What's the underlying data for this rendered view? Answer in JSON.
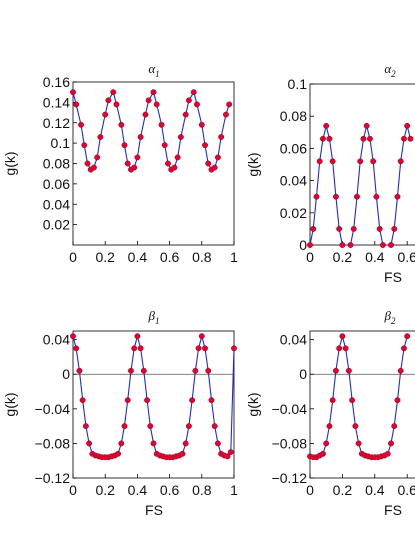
{
  "chart_data": [
    {
      "type": "scatter",
      "title": "α",
      "title_sub": "1",
      "xlabel": "",
      "ylabel": "g(k)",
      "xlim": [
        0,
        1
      ],
      "ylim": [
        0,
        0.16
      ],
      "xticks": [
        "0",
        "0.2",
        "0.4",
        "0.6",
        "0.8",
        "1"
      ],
      "yticks": [
        "0.02",
        "0.04",
        "0.06",
        "0.08",
        "0.1",
        "0.12",
        "0.14",
        "0.16"
      ],
      "series": [
        {
          "points": [
            [
              0,
              0.15
            ],
            [
              0.02,
              0.138
            ],
            [
              0.05,
              0.118
            ],
            [
              0.07,
              0.098
            ],
            [
              0.09,
              0.08
            ],
            [
              0.11,
              0.074
            ],
            [
              0.13,
              0.076
            ],
            [
              0.15,
              0.086
            ],
            [
              0.17,
              0.106
            ],
            [
              0.2,
              0.128
            ],
            [
              0.22,
              0.142
            ],
            [
              0.25,
              0.15
            ],
            [
              0.27,
              0.138
            ],
            [
              0.3,
              0.118
            ],
            [
              0.32,
              0.098
            ],
            [
              0.34,
              0.08
            ],
            [
              0.36,
              0.074
            ],
            [
              0.38,
              0.076
            ],
            [
              0.4,
              0.086
            ],
            [
              0.42,
              0.106
            ],
            [
              0.45,
              0.128
            ],
            [
              0.47,
              0.142
            ],
            [
              0.5,
              0.15
            ],
            [
              0.52,
              0.138
            ],
            [
              0.55,
              0.118
            ],
            [
              0.57,
              0.098
            ],
            [
              0.59,
              0.08
            ],
            [
              0.61,
              0.074
            ],
            [
              0.63,
              0.076
            ],
            [
              0.65,
              0.086
            ],
            [
              0.67,
              0.106
            ],
            [
              0.7,
              0.128
            ],
            [
              0.72,
              0.142
            ],
            [
              0.75,
              0.15
            ],
            [
              0.77,
              0.138
            ],
            [
              0.8,
              0.118
            ],
            [
              0.82,
              0.098
            ],
            [
              0.84,
              0.08
            ],
            [
              0.86,
              0.074
            ],
            [
              0.88,
              0.076
            ],
            [
              0.9,
              0.086
            ],
            [
              0.92,
              0.106
            ],
            [
              0.95,
              0.128
            ],
            [
              0.97,
              0.138
            ]
          ]
        }
      ]
    },
    {
      "type": "scatter",
      "title": "α",
      "title_sub": "2",
      "xlabel": "FS",
      "ylabel": "g(k)",
      "xlim": [
        0,
        1
      ],
      "ylim": [
        0,
        0.1
      ],
      "xticks": [
        "0",
        "0.2",
        "0.4",
        "0.6"
      ],
      "yticks": [
        "0",
        "0.02",
        "0.04",
        "0.06",
        "0.08",
        "0.1"
      ],
      "series": [
        {
          "points": [
            [
              0,
              0.0
            ],
            [
              0.02,
              0.01
            ],
            [
              0.04,
              0.03
            ],
            [
              0.06,
              0.052
            ],
            [
              0.08,
              0.066
            ],
            [
              0.1,
              0.074
            ],
            [
              0.12,
              0.066
            ],
            [
              0.14,
              0.052
            ],
            [
              0.16,
              0.03
            ],
            [
              0.18,
              0.01
            ],
            [
              0.2,
              0.0
            ],
            [
              0.25,
              0.0
            ],
            [
              0.27,
              0.01
            ],
            [
              0.29,
              0.03
            ],
            [
              0.31,
              0.052
            ],
            [
              0.33,
              0.066
            ],
            [
              0.35,
              0.074
            ],
            [
              0.37,
              0.066
            ],
            [
              0.39,
              0.052
            ],
            [
              0.41,
              0.03
            ],
            [
              0.43,
              0.01
            ],
            [
              0.45,
              0.0
            ],
            [
              0.5,
              0.0
            ],
            [
              0.52,
              0.01
            ],
            [
              0.54,
              0.03
            ],
            [
              0.56,
              0.052
            ],
            [
              0.58,
              0.066
            ],
            [
              0.6,
              0.074
            ],
            [
              0.62,
              0.066
            ]
          ]
        }
      ]
    },
    {
      "type": "scatter",
      "title": "β",
      "title_sub": "1",
      "xlabel": "FS",
      "ylabel": "g(k)",
      "xlim": [
        0,
        1
      ],
      "ylim": [
        -0.12,
        0.05
      ],
      "xticks": [
        "0",
        "0.2",
        "0.4",
        "0.6",
        "0.8",
        "1"
      ],
      "yticks": [
        "−0.12",
        "−0.08",
        "−0.04",
        "0",
        "0.04"
      ],
      "series": [
        {
          "points": [
            [
              0,
              0.044
            ],
            [
              0.02,
              0.03
            ],
            [
              0.04,
              0.004
            ],
            [
              0.06,
              -0.03
            ],
            [
              0.08,
              -0.06
            ],
            [
              0.1,
              -0.08
            ],
            [
              0.12,
              -0.092
            ],
            [
              0.14,
              -0.094
            ],
            [
              0.16,
              -0.095
            ],
            [
              0.18,
              -0.096
            ],
            [
              0.2,
              -0.096
            ],
            [
              0.22,
              -0.096
            ],
            [
              0.24,
              -0.095
            ],
            [
              0.26,
              -0.094
            ],
            [
              0.28,
              -0.092
            ],
            [
              0.3,
              -0.08
            ],
            [
              0.32,
              -0.06
            ],
            [
              0.34,
              -0.03
            ],
            [
              0.36,
              0.004
            ],
            [
              0.38,
              0.03
            ],
            [
              0.4,
              0.044
            ],
            [
              0.42,
              0.03
            ],
            [
              0.44,
              0.004
            ],
            [
              0.46,
              -0.03
            ],
            [
              0.48,
              -0.06
            ],
            [
              0.5,
              -0.08
            ],
            [
              0.52,
              -0.092
            ],
            [
              0.54,
              -0.094
            ],
            [
              0.56,
              -0.095
            ],
            [
              0.58,
              -0.096
            ],
            [
              0.6,
              -0.096
            ],
            [
              0.62,
              -0.096
            ],
            [
              0.64,
              -0.095
            ],
            [
              0.66,
              -0.094
            ],
            [
              0.68,
              -0.092
            ],
            [
              0.7,
              -0.08
            ],
            [
              0.72,
              -0.06
            ],
            [
              0.74,
              -0.03
            ],
            [
              0.76,
              0.004
            ],
            [
              0.78,
              0.03
            ],
            [
              0.8,
              0.044
            ],
            [
              0.82,
              0.03
            ],
            [
              0.84,
              0.004
            ],
            [
              0.86,
              -0.03
            ],
            [
              0.88,
              -0.06
            ],
            [
              0.9,
              -0.08
            ],
            [
              0.92,
              -0.092
            ],
            [
              0.94,
              -0.094
            ],
            [
              0.96,
              -0.095
            ],
            [
              0.98,
              -0.09
            ],
            [
              1.0,
              0.03
            ]
          ]
        }
      ]
    },
    {
      "type": "scatter",
      "title": "β",
      "title_sub": "2",
      "xlabel": "FS",
      "ylabel": "g(k)",
      "xlim": [
        0,
        1
      ],
      "ylim": [
        -0.12,
        0.05
      ],
      "xticks": [
        "0",
        "0.2",
        "0.4",
        "0.6"
      ],
      "yticks": [
        "−0.12",
        "−0.08",
        "−0.04",
        "0",
        "0.04"
      ],
      "series": [
        {
          "points": [
            [
              0,
              -0.095
            ],
            [
              0.02,
              -0.096
            ],
            [
              0.04,
              -0.096
            ],
            [
              0.06,
              -0.094
            ],
            [
              0.08,
              -0.092
            ],
            [
              0.1,
              -0.08
            ],
            [
              0.12,
              -0.06
            ],
            [
              0.14,
              -0.03
            ],
            [
              0.16,
              0.004
            ],
            [
              0.18,
              0.03
            ],
            [
              0.2,
              0.044
            ],
            [
              0.22,
              0.03
            ],
            [
              0.24,
              0.004
            ],
            [
              0.26,
              -0.03
            ],
            [
              0.28,
              -0.06
            ],
            [
              0.3,
              -0.08
            ],
            [
              0.32,
              -0.092
            ],
            [
              0.34,
              -0.094
            ],
            [
              0.36,
              -0.095
            ],
            [
              0.38,
              -0.096
            ],
            [
              0.4,
              -0.096
            ],
            [
              0.42,
              -0.096
            ],
            [
              0.44,
              -0.095
            ],
            [
              0.46,
              -0.094
            ],
            [
              0.48,
              -0.092
            ],
            [
              0.5,
              -0.08
            ],
            [
              0.52,
              -0.06
            ],
            [
              0.54,
              -0.03
            ],
            [
              0.56,
              0.004
            ],
            [
              0.58,
              0.03
            ],
            [
              0.6,
              0.044
            ]
          ]
        }
      ]
    }
  ]
}
